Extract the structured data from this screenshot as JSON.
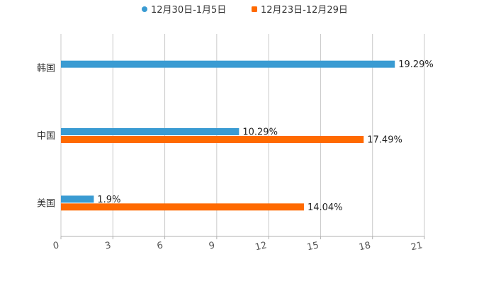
{
  "chart_data": {
    "type": "bar",
    "orientation": "horizontal",
    "title": "",
    "xlabel": "",
    "ylabel": "",
    "xlim": [
      0,
      21
    ],
    "x_ticks": [
      "0",
      "3",
      "6",
      "9",
      "12",
      "15",
      "18",
      "21"
    ],
    "categories": [
      "韩国",
      "中国",
      "美国"
    ],
    "series": [
      {
        "name": "12月30日-1月5日",
        "color": "#3a9bd2",
        "values": [
          19.29,
          10.29,
          1.9
        ],
        "labels": [
          "19.29%",
          "10.29%",
          "1.9%"
        ]
      },
      {
        "name": "12月23日-12月29日",
        "color": "#ff6a00",
        "values": [
          null,
          17.49,
          14.04
        ],
        "labels": [
          "",
          "17.49%",
          "14.04%"
        ]
      }
    ],
    "grid": true,
    "legend_position": "top-center"
  }
}
